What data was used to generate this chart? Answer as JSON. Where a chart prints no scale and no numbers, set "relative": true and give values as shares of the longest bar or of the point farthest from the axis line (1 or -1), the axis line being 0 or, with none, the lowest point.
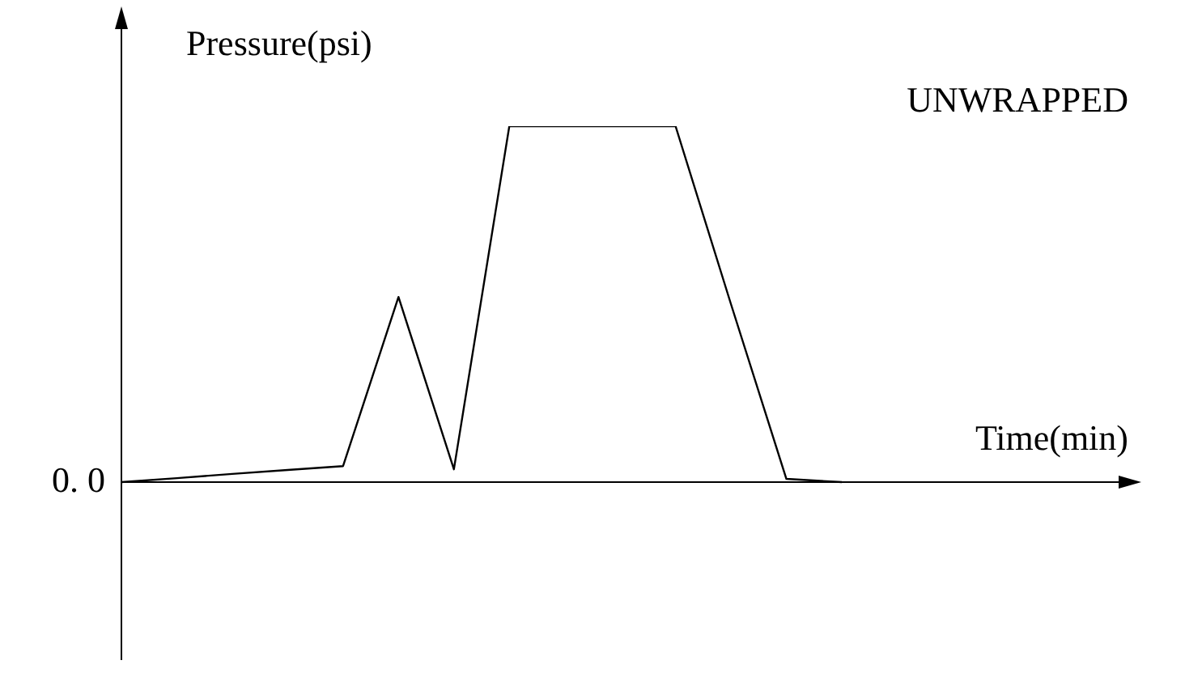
{
  "chart_data": {
    "type": "line",
    "title": "UNWRAPPED",
    "xlabel": "Time(min)",
    "ylabel": "Pressure(psi)",
    "relative": true,
    "legend": false,
    "marker": "none",
    "line_style": "solid",
    "annotations": [
      "0. 0"
    ],
    "categories": [
      null,
      null,
      null,
      null,
      null,
      null,
      null,
      null,
      null,
      null,
      null,
      null,
      null,
      null
    ],
    "series": [
      {
        "color": "#000000",
        "values": [
          0,
          0.011,
          0.023,
          0.034,
          0.045,
          0.52,
          0.036,
          1,
          1,
          1,
          1,
          0.5,
          0.009,
          0
        ]
      }
    ]
  }
}
